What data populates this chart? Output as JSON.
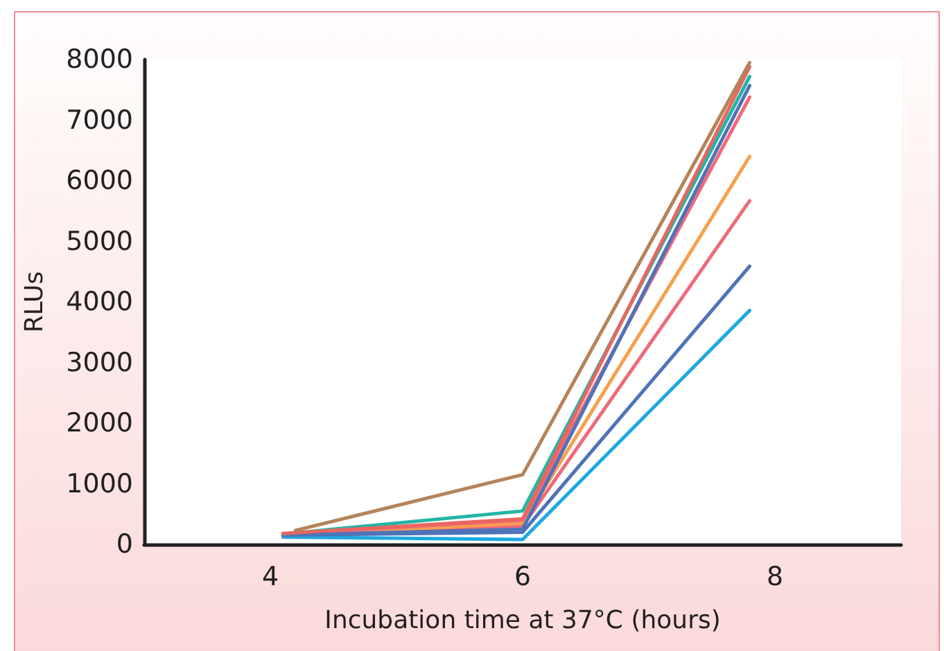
{
  "chart_data": {
    "type": "line",
    "xlabel": "Incubation time at 37°C (hours)",
    "ylabel": "RLUs",
    "xlim": [
      3,
      9
    ],
    "xticks": [
      4,
      6,
      8
    ],
    "ylim": [
      0,
      8000
    ],
    "yticks": [
      0,
      1000,
      2000,
      3000,
      4000,
      5000,
      6000,
      7000,
      8000
    ],
    "marker": "none",
    "line_style": "solid",
    "series": [
      {
        "color": "#1ea8e0",
        "x": [
          4.1,
          6,
          7.8
        ],
        "values": [
          120,
          80,
          3860
        ]
      },
      {
        "color": "#4f73b8",
        "x": [
          4.1,
          6,
          7.8
        ],
        "values": [
          150,
          200,
          4590
        ]
      },
      {
        "color": "#ef6a7a",
        "x": [
          4.1,
          6,
          7.8
        ],
        "values": [
          150,
          300,
          5670
        ]
      },
      {
        "color": "#f6a04d",
        "x": [
          4.1,
          6,
          7.8
        ],
        "values": [
          150,
          350,
          6400
        ]
      },
      {
        "color": "#ef6a7a",
        "x": [
          4.1,
          6,
          7.8
        ],
        "values": [
          170,
          400,
          7380
        ]
      },
      {
        "color": "#4f73b8",
        "x": [
          4.1,
          6,
          7.8
        ],
        "values": [
          150,
          250,
          7570
        ]
      },
      {
        "color": "#22b5a5",
        "x": [
          4.1,
          6,
          7.8
        ],
        "values": [
          170,
          550,
          7720
        ]
      },
      {
        "color": "#e8665f",
        "x": [
          4.1,
          6,
          7.8
        ],
        "values": [
          180,
          420,
          7880
        ]
      },
      {
        "color": "#b5835a",
        "x": [
          4.2,
          6,
          7.8
        ],
        "values": [
          230,
          1150,
          7950
        ]
      }
    ]
  }
}
